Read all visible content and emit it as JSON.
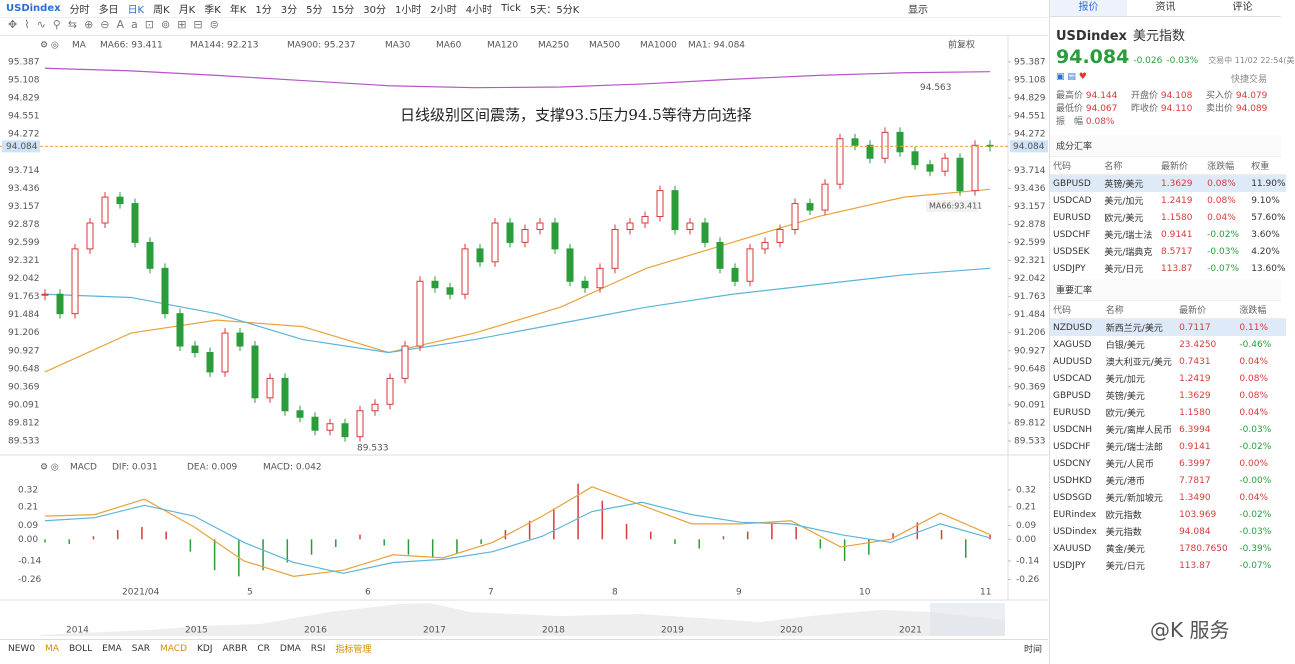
{
  "toolbar": {
    "symbol": "USDindex",
    "periods": [
      "分时",
      "多日",
      "日K",
      "周K",
      "月K",
      "季K",
      "年K",
      "1分",
      "3分",
      "5分",
      "15分",
      "30分",
      "1小时",
      "2小时",
      "4小时",
      "Tick",
      "5天：5分K"
    ],
    "display": "显示"
  },
  "price_chart": {
    "type": "candlestick",
    "closes": [
      91.8,
      91.5,
      92.5,
      92.9,
      93.3,
      93.2,
      92.6,
      92.2,
      91.5,
      91.0,
      90.9,
      90.6,
      91.2,
      91.0,
      90.2,
      90.5,
      90.0,
      89.9,
      89.7,
      89.8,
      89.6,
      90.0,
      90.1,
      90.5,
      91.0,
      92.0,
      91.9,
      91.8,
      92.5,
      92.3,
      92.9,
      92.6,
      92.8,
      92.9,
      92.5,
      92.0,
      91.9,
      92.2,
      92.8,
      92.9,
      93.0,
      93.4,
      92.8,
      92.9,
      92.6,
      92.2,
      92.0,
      92.5,
      92.6,
      92.8,
      93.2,
      93.1,
      93.5,
      94.2,
      94.1,
      93.9,
      94.3,
      94.0,
      93.8,
      93.7,
      93.9,
      93.4,
      94.1,
      94.084
    ],
    "ylim": [
      89.317,
      95.541
    ],
    "yticks": [
      95.387,
      95.108,
      94.829,
      94.551,
      94.272,
      93.714,
      93.436,
      93.157,
      92.878,
      92.599,
      92.321,
      92.042,
      91.763,
      91.484,
      91.206,
      90.927,
      90.648,
      90.369,
      90.091,
      89.812,
      89.533
    ],
    "ma_label": "MA",
    "ma_lines": [
      {
        "name": "MA66: 93.411",
        "color": "#e8a23c",
        "values": [
          90.6,
          91.2,
          91.4,
          91.3,
          90.9,
          91.2,
          91.6,
          92.2,
          92.6,
          93.0,
          93.3,
          93.42
        ]
      },
      {
        "name": "MA144: 92.213",
        "color": "#5bb5d8",
        "values": [
          91.8,
          91.75,
          91.5,
          91.1,
          90.9,
          91.1,
          91.35,
          91.6,
          91.8,
          91.95,
          92.1,
          92.2
        ]
      },
      {
        "name": "MA900: 95.237",
        "color": "#b455c8",
        "values": [
          95.29,
          95.25,
          95.18,
          95.1,
          95.02,
          94.99,
          95.0,
          95.05,
          95.12,
          95.18,
          95.22,
          95.237
        ]
      }
    ],
    "ma_inactive": [
      "MA30",
      "MA60",
      "MA120",
      "MA250",
      "MA500",
      "MA1000"
    ],
    "ma1": "MA1: 94.084",
    "adjust": "前复权",
    "annotation": "日线级别区间震荡，支撑93.5压力94.5等待方向选择",
    "high": {
      "value": 94.563,
      "label": "94.563"
    },
    "low": {
      "value": 89.533,
      "label": "89.533"
    },
    "ma_tag": "MA66:93.411",
    "last": {
      "value": 94.084,
      "label": "94.084"
    },
    "x_labels": [
      "2021/04",
      "5",
      "6",
      "7",
      "8",
      "9",
      "10",
      "11"
    ]
  },
  "macd_chart": {
    "type": "macd",
    "title": "MACD",
    "dif_label": "DIF: 0.031",
    "dea_label": "DEA: 0.009",
    "macd_label": "MACD: 0.042",
    "ylim": [
      -0.38,
      0.41
    ],
    "yticks": [
      0.32,
      0.21,
      0.09,
      {
        "value": 0,
        "label": "0.00"
      },
      -0.14,
      -0.26
    ],
    "histogram": [
      -0.02,
      -0.03,
      0.02,
      0.06,
      0.08,
      0.05,
      -0.08,
      -0.2,
      -0.24,
      -0.2,
      -0.15,
      -0.1,
      -0.05,
      0.03,
      -0.04,
      -0.1,
      -0.12,
      -0.09,
      -0.03,
      0.06,
      0.12,
      0.2,
      0.36,
      0.25,
      0.1,
      0.05,
      -0.03,
      -0.06,
      0.02,
      0.05,
      0.1,
      0.08,
      -0.06,
      -0.14,
      -0.1,
      0.04,
      0.11,
      0.06,
      -0.12,
      0.03
    ],
    "dif": [
      0.15,
      0.16,
      0.26,
      0.08,
      -0.14,
      -0.24,
      -0.2,
      -0.1,
      -0.12,
      -0.02,
      0.15,
      0.34,
      0.22,
      0.1,
      0.1,
      0.12,
      -0.05,
      0.0,
      0.17,
      0.031
    ],
    "dea": [
      0.12,
      0.14,
      0.22,
      0.15,
      -0.02,
      -0.15,
      -0.22,
      -0.15,
      -0.13,
      -0.08,
      0.02,
      0.18,
      0.24,
      0.16,
      0.11,
      0.1,
      0.03,
      -0.02,
      0.1,
      0.009
    ]
  },
  "navigator": {
    "years": [
      "2014",
      "2015",
      "2016",
      "2017",
      "2018",
      "2019",
      "2020",
      "2021"
    ]
  },
  "indicators": {
    "items": [
      "NEW0",
      "MA",
      "BOLL",
      "EMA",
      "SAR",
      "MACD",
      "KDJ",
      "ARBR",
      "CR",
      "DMA",
      "RSI",
      "指标管理"
    ],
    "time": "时间"
  },
  "watermark": "@K 服务",
  "quote": {
    "tabs": [
      "报价",
      "资讯",
      "评论"
    ],
    "code": "USDindex",
    "name": "美元指数",
    "price": "94.084",
    "change": "-0.026",
    "pct": "-0.03%",
    "status": "交易中 11/02 22:54(美",
    "quick": "快捷交易",
    "stats": [
      [
        "最高价",
        "94.144"
      ],
      [
        "开盘价",
        "94.108"
      ],
      [
        "买入价",
        "94.079"
      ],
      [
        "最低价",
        "94.067"
      ],
      [
        "昨收价",
        "94.110"
      ],
      [
        "卖出价",
        "94.089"
      ],
      [
        "振　幅",
        "0.08%"
      ]
    ],
    "components": {
      "title": "成分汇率",
      "headers": [
        "代码",
        "名称",
        "最新价",
        "涨跌幅",
        "权重"
      ],
      "rows": [
        [
          "GBPUSD",
          "英镑/美元",
          "1.3629",
          "0.08%",
          "11.90%"
        ],
        [
          "USDCAD",
          "美元/加元",
          "1.2419",
          "0.08%",
          "9.10%"
        ],
        [
          "EURUSD",
          "欧元/美元",
          "1.1580",
          "0.04%",
          "57.60%"
        ],
        [
          "USDCHF",
          "美元/瑞士法",
          "0.9141",
          "-0.02%",
          "3.60%"
        ],
        [
          "USDSEK",
          "美元/瑞典克",
          "8.5717",
          "-0.03%",
          "4.20%"
        ],
        [
          "USDJPY",
          "美元/日元",
          "113.87",
          "-0.07%",
          "13.60%"
        ]
      ]
    },
    "major": {
      "title": "重要汇率",
      "headers": [
        "代码",
        "名称",
        "最新价",
        "涨跌幅"
      ],
      "rows": [
        [
          "NZDUSD",
          "新西兰元/美元",
          "0.7117",
          "0.11%"
        ],
        [
          "XAGUSD",
          "白银/美元",
          "23.4250",
          "-0.46%"
        ],
        [
          "AUDUSD",
          "澳大利亚元/美元",
          "0.7431",
          "0.04%"
        ],
        [
          "USDCAD",
          "美元/加元",
          "1.2419",
          "0.08%"
        ],
        [
          "GBPUSD",
          "英镑/美元",
          "1.3629",
          "0.08%"
        ],
        [
          "EURUSD",
          "欧元/美元",
          "1.1580",
          "0.04%"
        ],
        [
          "USDCNH",
          "美元/离岸人民币",
          "6.3994",
          "-0.03%"
        ],
        [
          "USDCHF",
          "美元/瑞士法郎",
          "0.9141",
          "-0.02%"
        ],
        [
          "USDCNY",
          "美元/人民币",
          "6.3997",
          "0.00%"
        ],
        [
          "USDHKD",
          "美元/港币",
          "7.7817",
          "-0.00%"
        ],
        [
          "USDSGD",
          "美元/新加坡元",
          "1.3490",
          "0.04%"
        ],
        [
          "EURindex",
          "欧元指数",
          "103.969",
          "-0.02%"
        ],
        [
          "USDindex",
          "美元指数",
          "94.084",
          "-0.03%"
        ],
        [
          "XAUUSD",
          "黄金/美元",
          "1780.7650",
          "-0.39%"
        ],
        [
          "USDJPY",
          "美元/日元",
          "113.87",
          "-0.07%"
        ]
      ]
    }
  }
}
